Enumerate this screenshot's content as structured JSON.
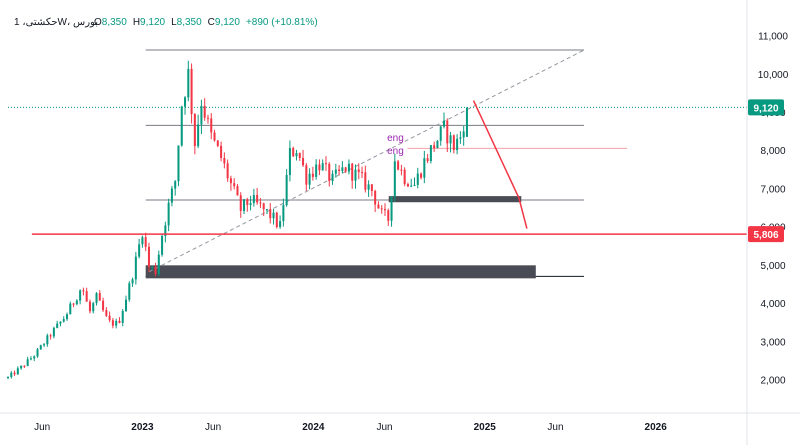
{
  "header": {
    "symbol": "حکشتی، 1W، بورس",
    "open_label": "O",
    "open_value": "8,350",
    "high_label": "H",
    "high_value": "9,120",
    "low_label": "L",
    "low_value": "8,350",
    "close_label": "C",
    "close_value": "9,120",
    "change": "+890 (+10.81%)"
  },
  "colors": {
    "up": "#089981",
    "down": "#f23645",
    "level_line": "#787b86",
    "zone_fill": "#4a4c55",
    "support_line": "#f23645",
    "dashed_trend": "#9598a1",
    "annotation": "#9c27b0"
  },
  "annotations": [
    {
      "text": "eng",
      "date": "2024-06-15",
      "price": 8350
    },
    {
      "text": "eng",
      "date": "2024-06-15",
      "price": 8000
    }
  ],
  "price_badges": [
    {
      "value": "9,120",
      "price": 9120,
      "color": "#089981",
      "name": "last-price-badge"
    },
    {
      "value": "5,806",
      "price": 5806,
      "color": "#f23645",
      "name": "support-price-badge"
    }
  ],
  "chart_data": {
    "type": "candlestick",
    "timeframe": "1W",
    "y_axis": {
      "ticks": [
        {
          "label": "2,000",
          "value": 2000
        },
        {
          "label": "3,000",
          "value": 3000
        },
        {
          "label": "4,000",
          "value": 4000
        },
        {
          "label": "5,000",
          "value": 5000
        },
        {
          "label": "6,000",
          "value": 6000
        },
        {
          "label": "7,000",
          "value": 7000
        },
        {
          "label": "8,000",
          "value": 8000
        },
        {
          "label": "9,000",
          "value": 9000
        },
        {
          "label": "10,000",
          "value": 10000
        },
        {
          "label": "11,000",
          "value": 11000
        }
      ],
      "range": [
        1180,
        11720
      ],
      "position": "right"
    },
    "x_axis": {
      "range": [
        "2022-03-20",
        "2026-07-15"
      ],
      "ticks": [
        {
          "label": "Jun",
          "date": "2022-06-01",
          "bold": false
        },
        {
          "label": "2023",
          "date": "2023-01-01",
          "bold": true
        },
        {
          "label": "Jun",
          "date": "2023-06-01",
          "bold": false
        },
        {
          "label": "2024",
          "date": "2024-01-01",
          "bold": true
        },
        {
          "label": "Jun",
          "date": "2024-06-01",
          "bold": false
        },
        {
          "label": "2025",
          "date": "2025-01-01",
          "bold": true
        },
        {
          "label": "Jun",
          "date": "2025-06-01",
          "bold": false
        },
        {
          "label": "2026",
          "date": "2026-01-01",
          "bold": true
        }
      ]
    },
    "anchors": [
      [
        "2022-03-20",
        2050
      ],
      [
        "2022-04-20",
        2350
      ],
      [
        "2022-05-20",
        2700
      ],
      [
        "2022-06-20",
        3200
      ],
      [
        "2022-07-20",
        3650
      ],
      [
        "2022-08-10",
        4100
      ],
      [
        "2022-08-25",
        4450
      ],
      [
        "2022-09-10",
        3750
      ],
      [
        "2022-09-25",
        4150
      ],
      [
        "2022-10-20",
        3500
      ],
      [
        "2022-11-10",
        3450
      ],
      [
        "2022-12-01",
        4300
      ],
      [
        "2022-12-15",
        4950
      ],
      [
        "2023-01-01",
        5900
      ],
      [
        "2023-01-15",
        4950
      ],
      [
        "2023-01-29",
        4850
      ],
      [
        "2023-02-12",
        5800
      ],
      [
        "2023-02-26",
        6550
      ],
      [
        "2023-03-12",
        7200
      ],
      [
        "2023-03-26",
        9200
      ],
      [
        "2023-04-09",
        10000
      ],
      [
        "2023-04-23",
        8200
      ],
      [
        "2023-05-07",
        9300
      ],
      [
        "2023-05-28",
        8350
      ],
      [
        "2023-06-18",
        7800
      ],
      [
        "2023-07-09",
        7100
      ],
      [
        "2023-07-30",
        6450
      ],
      [
        "2023-08-20",
        6700
      ],
      [
        "2023-09-10",
        6500
      ],
      [
        "2023-10-01",
        6300
      ],
      [
        "2023-10-22",
        6000
      ],
      [
        "2023-11-12",
        7900
      ],
      [
        "2023-11-26",
        8050
      ],
      [
        "2023-12-17",
        7300
      ],
      [
        "2024-01-14",
        7650
      ],
      [
        "2024-02-11",
        7200
      ],
      [
        "2024-03-10",
        7550
      ],
      [
        "2024-04-07",
        7300
      ],
      [
        "2024-05-05",
        6950
      ],
      [
        "2024-05-26",
        6300
      ],
      [
        "2024-06-09",
        6200
      ],
      [
        "2024-06-23",
        7750
      ],
      [
        "2024-07-14",
        7300
      ],
      [
        "2024-08-04",
        7100
      ],
      [
        "2024-08-25",
        7700
      ],
      [
        "2024-09-15",
        8150
      ],
      [
        "2024-10-06",
        8550
      ],
      [
        "2024-10-27",
        8100
      ],
      [
        "2024-11-10",
        8350
      ],
      [
        "2024-11-24",
        9120
      ]
    ],
    "horizontal_levels": [
      {
        "price": 10620,
        "start": "2023-01-08",
        "end": "2025-08-01",
        "kind": "resistance"
      },
      {
        "price": 8650,
        "start": "2023-01-08",
        "end": "2025-08-01",
        "kind": "resistance"
      },
      {
        "price": 8050,
        "start": "2024-07-20",
        "end": "2025-11-01",
        "kind": "minor"
      },
      {
        "price": 6700,
        "start": "2023-01-08",
        "end": "2025-08-01",
        "kind": "support"
      },
      {
        "price": 4700,
        "start": "2023-01-08",
        "end": "2025-08-01",
        "kind": "support"
      }
    ],
    "support_line": {
      "price": 5806,
      "start": "2022-05-10",
      "end": "2026-07-15"
    },
    "zones": [
      {
        "top": 4990,
        "bottom": 4650,
        "start": "2023-01-08",
        "end": "2025-04-20"
      },
      {
        "top": 6800,
        "bottom": 6640,
        "start": "2024-06-10",
        "end": "2025-03-20"
      }
    ],
    "trendline": {
      "from": [
        "2023-01-15",
        4820
      ],
      "to": [
        "2025-08-01",
        10620
      ]
    },
    "projection": [
      [
        "2024-12-08",
        9300
      ],
      [
        "2025-03-15",
        6750
      ],
      [
        "2025-04-01",
        5950
      ]
    ]
  }
}
